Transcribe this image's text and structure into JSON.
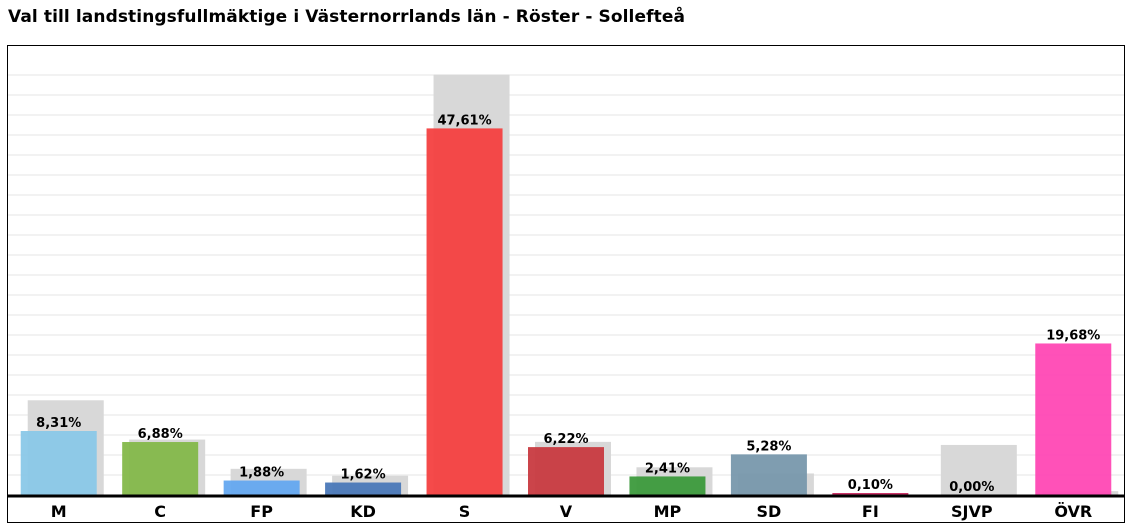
{
  "chart_data": {
    "type": "bar",
    "title": "Val till landstingsfullmäktige i Västernorrlands län - Röster - Sollefteå",
    "categories": [
      "M",
      "C",
      "FP",
      "KD",
      "S",
      "V",
      "MP",
      "SD",
      "FI",
      "SJVP",
      "ÖVR"
    ],
    "series": [
      {
        "values": [
          8.31,
          6.88,
          1.88,
          1.62,
          47.61,
          6.22,
          2.41,
          5.28,
          0.1,
          0.0,
          19.68
        ],
        "labels": [
          "8,31%",
          "6,88%",
          "1,88%",
          "1,62%",
          "47,61%",
          "6,22%",
          "2,41%",
          "5,28%",
          "0,10%",
          "0,00%",
          "19,68%"
        ],
        "colors": [
          "#8ac8e8",
          "#84b84a",
          "#64a8f0",
          "#4a78b8",
          "#f44040",
          "#c83a40",
          "#3c9a3c",
          "#7898ac",
          "#c82860",
          "#444444",
          "#ff48b4"
        ]
      },
      {
        "values": [
          12.3,
          7.2,
          3.4,
          2.5,
          54.6,
          6.9,
          3.6,
          2.8,
          0.0,
          6.5,
          0.5
        ],
        "color": "#d8d8d8"
      }
    ],
    "ylim": [
      0,
      55
    ],
    "grid": true
  }
}
